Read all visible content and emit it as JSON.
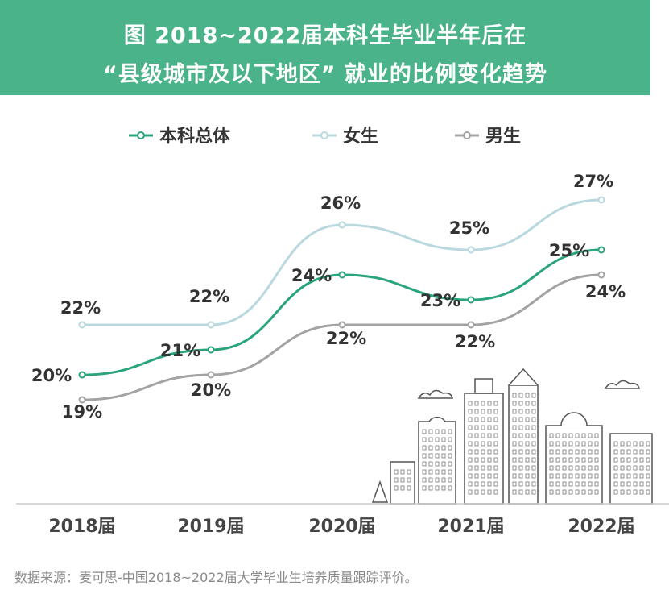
{
  "title": {
    "line1": "图 2018~2022届本科生毕业半年后在",
    "line2": "“县级城市及以下地区” 就业的比例变化趋势"
  },
  "chart_data": {
    "type": "line",
    "categories": [
      "2018届",
      "2019届",
      "2020届",
      "2021届",
      "2022届"
    ],
    "series": [
      {
        "name": "本科总体",
        "values": [
          20,
          21,
          24,
          23,
          25
        ],
        "color": "#2aa57a",
        "labels": [
          "20%",
          "21%",
          "24%",
          "23%",
          "25%"
        ]
      },
      {
        "name": "女生",
        "values": [
          22,
          22,
          26,
          25,
          27
        ],
        "color": "#b9d9df",
        "labels": [
          "22%",
          "22%",
          "26%",
          "25%",
          "27%"
        ]
      },
      {
        "name": "男生",
        "values": [
          19,
          20,
          22,
          22,
          24
        ],
        "color": "#a3a3a3",
        "labels": [
          "19%",
          "20%",
          "22%",
          "22%",
          "24%"
        ]
      }
    ],
    "unit": "%",
    "legend_position": "top",
    "grid": false
  },
  "footnote": "数据来源：麦可思-中国2018~2022届大学毕业生培养质量跟踪评价。",
  "colors": {
    "banner": "#4ab38a",
    "text": "#333333",
    "axis": "#cccccc"
  }
}
